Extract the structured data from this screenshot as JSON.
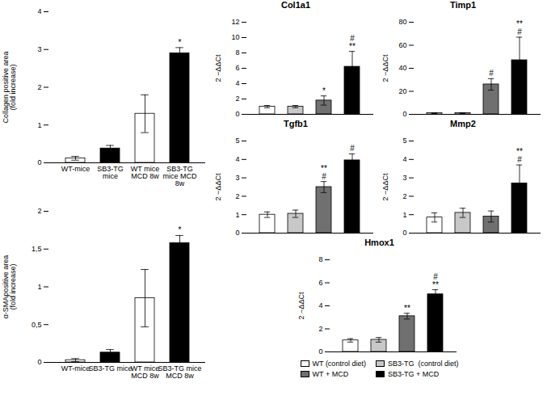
{
  "chart_data": [
    {
      "type": "bar",
      "categories": [
        "WT-mice",
        "SB3-TG\nmice",
        "WT mice\nMCD 8w",
        "SB3-TG\nmice MCD\n8w"
      ],
      "values": [
        0.12,
        0.38,
        1.3,
        2.9
      ],
      "errors": [
        0.05,
        0.08,
        0.5,
        0.15
      ],
      "colors": [
        "white",
        "black",
        "white",
        "black"
      ],
      "ylabel": "Collagen positive area\n(fold increase)",
      "ylim": [
        0,
        4
      ],
      "yticks": [
        0,
        1,
        2,
        3,
        4
      ],
      "annotations": [
        null,
        null,
        null,
        "*"
      ]
    },
    {
      "type": "bar",
      "categories": [
        "WT-mice",
        "SB3-TG mice",
        "WT mice\nMCD 8w",
        "SB3-TG mice\nMCD 8w"
      ],
      "values": [
        0.03,
        0.13,
        0.85,
        1.58
      ],
      "errors": [
        0.02,
        0.04,
        0.38,
        0.1
      ],
      "colors": [
        "white",
        "black",
        "white",
        "black"
      ],
      "ylabel": "α-SMApositive area\n(fold increase)",
      "ylim": [
        0,
        2
      ],
      "yticks": [
        0,
        {
          "value": 0.5,
          "label": "0,5"
        },
        1,
        {
          "value": 1.5,
          "label": "1,5"
        },
        2
      ],
      "annotations": [
        null,
        null,
        null,
        "*"
      ]
    },
    {
      "type": "bar",
      "title": "Col1a1",
      "categories": [
        "WT (control diet)",
        "SB3-TG  (control diet)",
        "WT + MCD",
        "SB3-TG + MCD"
      ],
      "values": [
        1.0,
        1.0,
        1.8,
        6.2
      ],
      "errors": [
        0.15,
        0.15,
        0.6,
        2.0
      ],
      "colors": [
        "white",
        "#c8c8c8",
        "#707070",
        "black"
      ],
      "ylabel": "2 −ΔΔCt",
      "ylim": [
        0,
        12
      ],
      "yticks": [
        0,
        2,
        4,
        6,
        8,
        10,
        12
      ],
      "annotations": [
        null,
        null,
        "*",
        "#\n**"
      ],
      "tick_labels": "y"
    },
    {
      "type": "bar",
      "title": "Timp1",
      "categories": [
        "WT (control diet)",
        "SB3-TG  (control diet)",
        "WT + MCD",
        "SB3-TG + MCD"
      ],
      "values": [
        1.0,
        1.0,
        26.0,
        47.0
      ],
      "errors": [
        0.3,
        0.3,
        5.0,
        20.0
      ],
      "colors": [
        "white",
        "#c8c8c8",
        "#707070",
        "black"
      ],
      "ylabel": "2 −ΔΔCt",
      "ylim": [
        0,
        80
      ],
      "yticks": [
        0,
        20,
        40,
        60,
        80
      ],
      "annotations": [
        null,
        null,
        "#",
        "**\n#"
      ],
      "tick_labels": "y"
    },
    {
      "type": "bar",
      "title": "Tgfb1",
      "categories": [
        "WT (control diet)",
        "SB3-TG  (control diet)",
        "WT + MCD",
        "SB3-TG + MCD"
      ],
      "values": [
        1.0,
        1.05,
        2.5,
        3.95
      ],
      "errors": [
        0.15,
        0.2,
        0.3,
        0.35
      ],
      "colors": [
        "white",
        "#c8c8c8",
        "#707070",
        "black"
      ],
      "ylabel": "2 −ΔΔCt",
      "ylim": [
        0,
        5
      ],
      "yticks": [
        0,
        1,
        2,
        3,
        4,
        5
      ],
      "annotations": [
        null,
        null,
        "**\n#",
        "#"
      ],
      "tick_labels": "y"
    },
    {
      "type": "bar",
      "title": "Mmp2",
      "categories": [
        "WT (control diet)",
        "SB3-TG  (control diet)",
        "WT + MCD",
        "SB3-TG + MCD"
      ],
      "values": [
        0.85,
        1.1,
        0.9,
        2.7
      ],
      "errors": [
        0.25,
        0.25,
        0.3,
        1.0
      ],
      "colors": [
        "white",
        "#c8c8c8",
        "#707070",
        "black"
      ],
      "ylabel": "2 −ΔΔCt",
      "ylim": [
        0,
        5
      ],
      "yticks": [
        0,
        1,
        2,
        3,
        4,
        5
      ],
      "annotations": [
        null,
        null,
        null,
        "**\n#"
      ],
      "tick_labels": "y"
    },
    {
      "type": "bar",
      "title": "Hmox1",
      "categories": [
        "WT (control diet)",
        "SB3-TG  (control diet)",
        "WT + MCD",
        "SB3-TG + MCD"
      ],
      "values": [
        1.0,
        1.05,
        3.1,
        5.0
      ],
      "errors": [
        0.15,
        0.2,
        0.25,
        0.4
      ],
      "colors": [
        "white",
        "#c8c8c8",
        "#707070",
        "black"
      ],
      "ylabel": "2 −ΔΔCt",
      "ylim": [
        0,
        8
      ],
      "yticks": [
        0,
        2,
        4,
        6,
        8
      ],
      "annotations": [
        null,
        null,
        "**",
        "#\n**"
      ],
      "tick_labels": "y",
      "legend": "bottom"
    }
  ]
}
